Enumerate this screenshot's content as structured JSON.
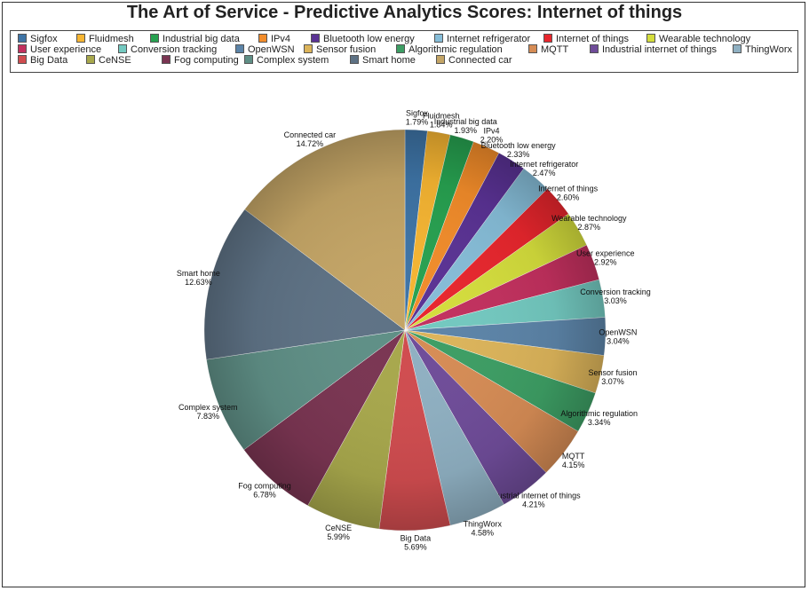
{
  "chart_data": {
    "type": "pie",
    "title": "The Art of Service - Predictive Analytics Scores: Internet of things",
    "legend_position": "top",
    "slices": [
      {
        "label": "Sigfox",
        "value": 1.79,
        "pct_label": "1.79%",
        "color": "#3e74a6"
      },
      {
        "label": "Fluidmesh",
        "value": 1.84,
        "pct_label": "1.84%",
        "color": "#f6b532"
      },
      {
        "label": "Industrial big data",
        "value": 1.93,
        "pct_label": "1.93%",
        "color": "#27a150"
      },
      {
        "label": "IPv4",
        "value": 2.2,
        "pct_label": "2.20%",
        "color": "#f28c2a"
      },
      {
        "label": "Bluetooth low energy",
        "value": 2.33,
        "pct_label": "2.33%",
        "color": "#5a3294"
      },
      {
        "label": "Internet refrigerator",
        "value": 2.47,
        "pct_label": "2.47%",
        "color": "#86bdd8"
      },
      {
        "label": "Internet of things",
        "value": 2.6,
        "pct_label": "2.60%",
        "color": "#e8262d"
      },
      {
        "label": "Wearable technology",
        "value": 2.87,
        "pct_label": "2.87%",
        "color": "#d4dd3c"
      },
      {
        "label": "User experience",
        "value": 2.92,
        "pct_label": "2.92%",
        "color": "#c2305e"
      },
      {
        "label": "Conversion tracking",
        "value": 3.03,
        "pct_label": "3.03%",
        "color": "#73c9c0"
      },
      {
        "label": "OpenWSN",
        "value": 3.04,
        "pct_label": "3.04%",
        "color": "#5c84a8"
      },
      {
        "label": "Sensor fusion",
        "value": 3.07,
        "pct_label": "3.07%",
        "color": "#dcb45a"
      },
      {
        "label": "Algorithmic regulation",
        "value": 3.34,
        "pct_label": "3.34%",
        "color": "#3d9e64"
      },
      {
        "label": "MQTT",
        "value": 4.15,
        "pct_label": "4.15%",
        "color": "#d68c55"
      },
      {
        "label": "Industrial internet of things",
        "value": 4.21,
        "pct_label": "4.21%",
        "color": "#6f4c99"
      },
      {
        "label": "ThingWorx",
        "value": 4.58,
        "pct_label": "4.58%",
        "color": "#8fb0c2"
      },
      {
        "label": "Big Data",
        "value": 5.69,
        "pct_label": "5.69%",
        "color": "#d04c4f"
      },
      {
        "label": "CeNSE",
        "value": 5.99,
        "pct_label": "5.99%",
        "color": "#a8a84c"
      },
      {
        "label": "Fog computing",
        "value": 6.78,
        "pct_label": "6.78%",
        "color": "#7a3552"
      },
      {
        "label": "Complex system",
        "value": 7.83,
        "pct_label": "7.83%",
        "color": "#5f8f86"
      },
      {
        "label": "Smart home",
        "value": 12.63,
        "pct_label": "12.63%",
        "color": "#5e7285"
      },
      {
        "label": "Connected car",
        "value": 14.72,
        "pct_label": "14.72%",
        "color": "#c4a566"
      }
    ]
  }
}
